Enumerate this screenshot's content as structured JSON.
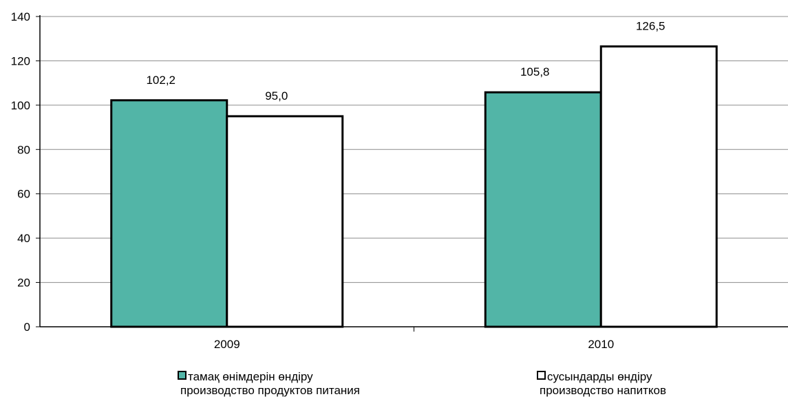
{
  "chart_data": {
    "type": "bar",
    "categories": [
      "2009",
      "2010"
    ],
    "series": [
      {
        "name": "тамақ өнімдерін өндіру\nпроизводство продуктов питания",
        "name_lines": [
          "тамақ өнімдерін өндіру",
          "производство продуктов питания"
        ],
        "values": [
          102.2,
          105.8
        ],
        "labels": [
          "102,2",
          "105,8"
        ],
        "color": "#52b5a7"
      },
      {
        "name": "сусындарды өндіру\nпроизводство напитков",
        "name_lines": [
          "сусындарды өндіру",
          "производство напитков"
        ],
        "values": [
          95.0,
          126.5
        ],
        "labels": [
          "95,0",
          "126,5"
        ],
        "color": "#ffffff"
      }
    ],
    "ylim": [
      0,
      140
    ],
    "yticks": [
      "0",
      "20",
      "40",
      "60",
      "80",
      "100",
      "120",
      "140"
    ],
    "grid": true,
    "legend_position": "bottom"
  }
}
